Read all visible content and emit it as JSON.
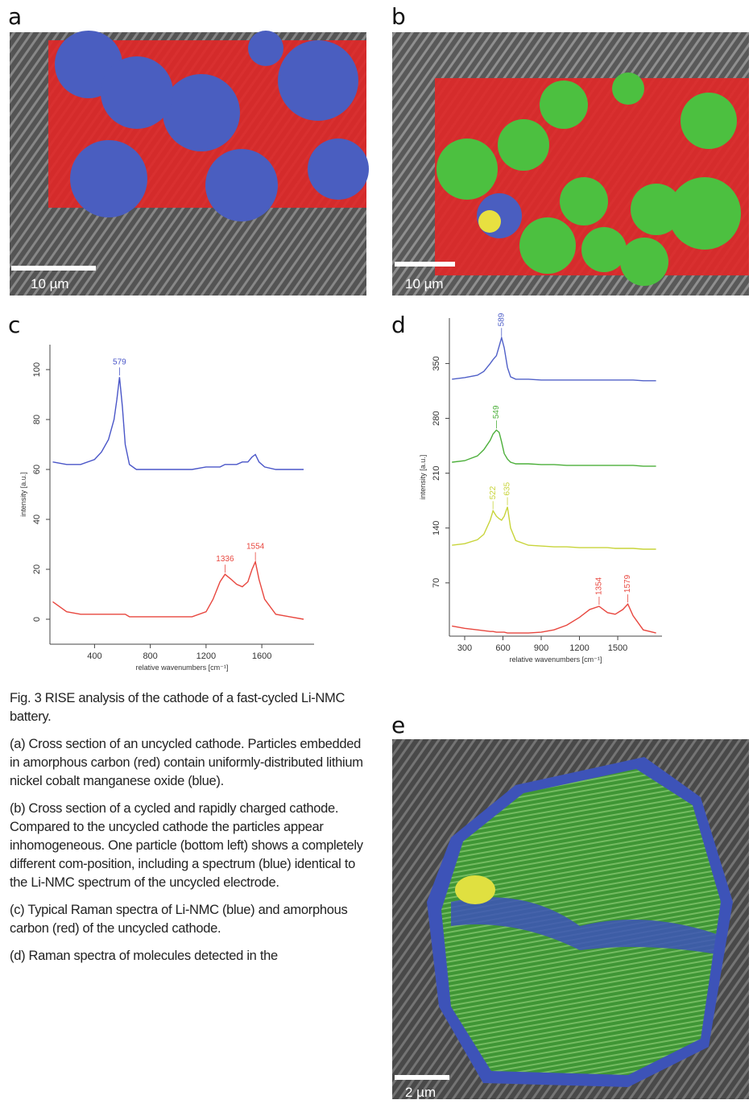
{
  "panel_labels": [
    "a",
    "b",
    "c",
    "d",
    "e"
  ],
  "scale_bars": [
    "10 µm",
    "10 µm",
    "2 µm"
  ],
  "chart_data": [
    {
      "type": "line",
      "y_label": "intensity [a.u.]",
      "x_label": "relative wavenumbers [cm⁻¹]",
      "xlim": [
        80,
        1975
      ],
      "ylim": [
        -10,
        110
      ],
      "xticks": [
        400,
        800,
        1200,
        1600
      ],
      "yticks": [
        0,
        20,
        40,
        60,
        80,
        100
      ],
      "x": [
        100,
        200,
        300,
        400,
        450,
        500,
        540,
        560,
        579,
        600,
        620,
        650,
        700,
        800,
        900,
        1000,
        1100,
        1200,
        1250,
        1300,
        1336,
        1380,
        1420,
        1460,
        1500,
        1530,
        1554,
        1580,
        1620,
        1700,
        1800,
        1900
      ],
      "series": [
        {
          "color": "#4a56c8",
          "values": [
            63,
            62,
            62,
            64,
            67,
            72,
            80,
            88,
            97,
            85,
            70,
            62,
            60,
            60,
            60,
            60,
            60,
            61,
            61,
            61,
            62,
            62,
            62,
            63,
            63,
            65,
            66,
            63,
            61,
            60,
            60,
            60
          ]
        },
        {
          "color": "#e8473f",
          "values": [
            7,
            3,
            2,
            2,
            2,
            2,
            2,
            2,
            2,
            2,
            2,
            1,
            1,
            1,
            1,
            1,
            1,
            3,
            8,
            15,
            18,
            16,
            14,
            13,
            15,
            20,
            23,
            16,
            8,
            2,
            1,
            0
          ]
        }
      ],
      "annotations": [
        {
          "label": "579",
          "x": 579,
          "y": 97,
          "color": "#4a56c8"
        },
        {
          "label": "1336",
          "x": 1336,
          "y": 18,
          "color": "#e8473f"
        },
        {
          "label": "1554",
          "x": 1554,
          "y": 23,
          "color": "#e8473f"
        }
      ]
    },
    {
      "type": "line",
      "y_label": "intensity [a.u.]",
      "x_label": "relative wavenumbers [cm⁻¹]",
      "xlim": [
        180,
        1847
      ],
      "ylim": [
        2,
        408
      ],
      "xticks": [
        300,
        600,
        900,
        1200,
        1500
      ],
      "yticks": [
        70,
        140,
        210,
        280,
        350
      ],
      "x": [
        200,
        300,
        400,
        450,
        500,
        522,
        549,
        570,
        589,
        610,
        635,
        660,
        700,
        800,
        900,
        1000,
        1100,
        1200,
        1280,
        1354,
        1420,
        1480,
        1540,
        1579,
        1620,
        1700,
        1800
      ],
      "series": [
        {
          "color": "#5060c8",
          "values": [
            330,
            332,
            335,
            340,
            350,
            355,
            360,
            372,
            383,
            370,
            345,
            333,
            330,
            330,
            329,
            329,
            329,
            329,
            329,
            329,
            329,
            329,
            329,
            329,
            329,
            328,
            328
          ]
        },
        {
          "color": "#4caf3a",
          "values": [
            224,
            226,
            232,
            240,
            252,
            260,
            265,
            262,
            250,
            235,
            228,
            224,
            222,
            222,
            221,
            221,
            220,
            220,
            220,
            220,
            220,
            220,
            220,
            220,
            220,
            219,
            219
          ]
        },
        {
          "color": "#c8d43a",
          "values": [
            118,
            120,
            125,
            132,
            150,
            162,
            155,
            152,
            150,
            155,
            167,
            140,
            124,
            118,
            117,
            116,
            116,
            115,
            115,
            115,
            115,
            114,
            114,
            114,
            114,
            113,
            113
          ]
        },
        {
          "color": "#e8473f",
          "values": [
            15,
            12,
            10,
            9,
            8,
            8,
            7,
            7,
            7,
            7,
            6,
            6,
            6,
            6,
            7,
            10,
            16,
            26,
            36,
            40,
            32,
            30,
            36,
            43,
            28,
            10,
            6
          ]
        }
      ],
      "annotations": [
        {
          "label": "589",
          "x": 589,
          "y": 383,
          "color": "#5060c8"
        },
        {
          "label": "549",
          "x": 549,
          "y": 265,
          "color": "#4caf3a"
        },
        {
          "label": "522",
          "x": 522,
          "y": 162,
          "color": "#c8d43a"
        },
        {
          "label": "635",
          "x": 635,
          "y": 167,
          "color": "#c8d43a"
        },
        {
          "label": "1354",
          "x": 1354,
          "y": 40,
          "color": "#e8473f"
        },
        {
          "label": "1579",
          "x": 1579,
          "y": 43,
          "color": "#e8473f"
        }
      ]
    }
  ],
  "caption": {
    "title": "Fig. 3 RISE analysis of the cathode of a fast-cycled Li-NMC battery.",
    "paragraphs": [
      "(a) Cross section of an uncycled cathode. Particles embedded in amorphous carbon (red) contain uniformly-distributed lithium nickel cobalt manganese oxide (blue).",
      "(b) Cross section of a cycled and rapidly charged cathode. Compared to the uncycled cathode the particles appear inhomogeneous. One particle (bottom left) shows a completely different com-position, including a spectrum (blue) identical to the Li-NMC spectrum of the uncycled electrode.",
      "(c) Typical Raman spectra of Li-NMC (blue) and amorphous carbon (red) of the uncycled cathode.",
      "(d) Raman spectra of molecules detected in the"
    ]
  }
}
